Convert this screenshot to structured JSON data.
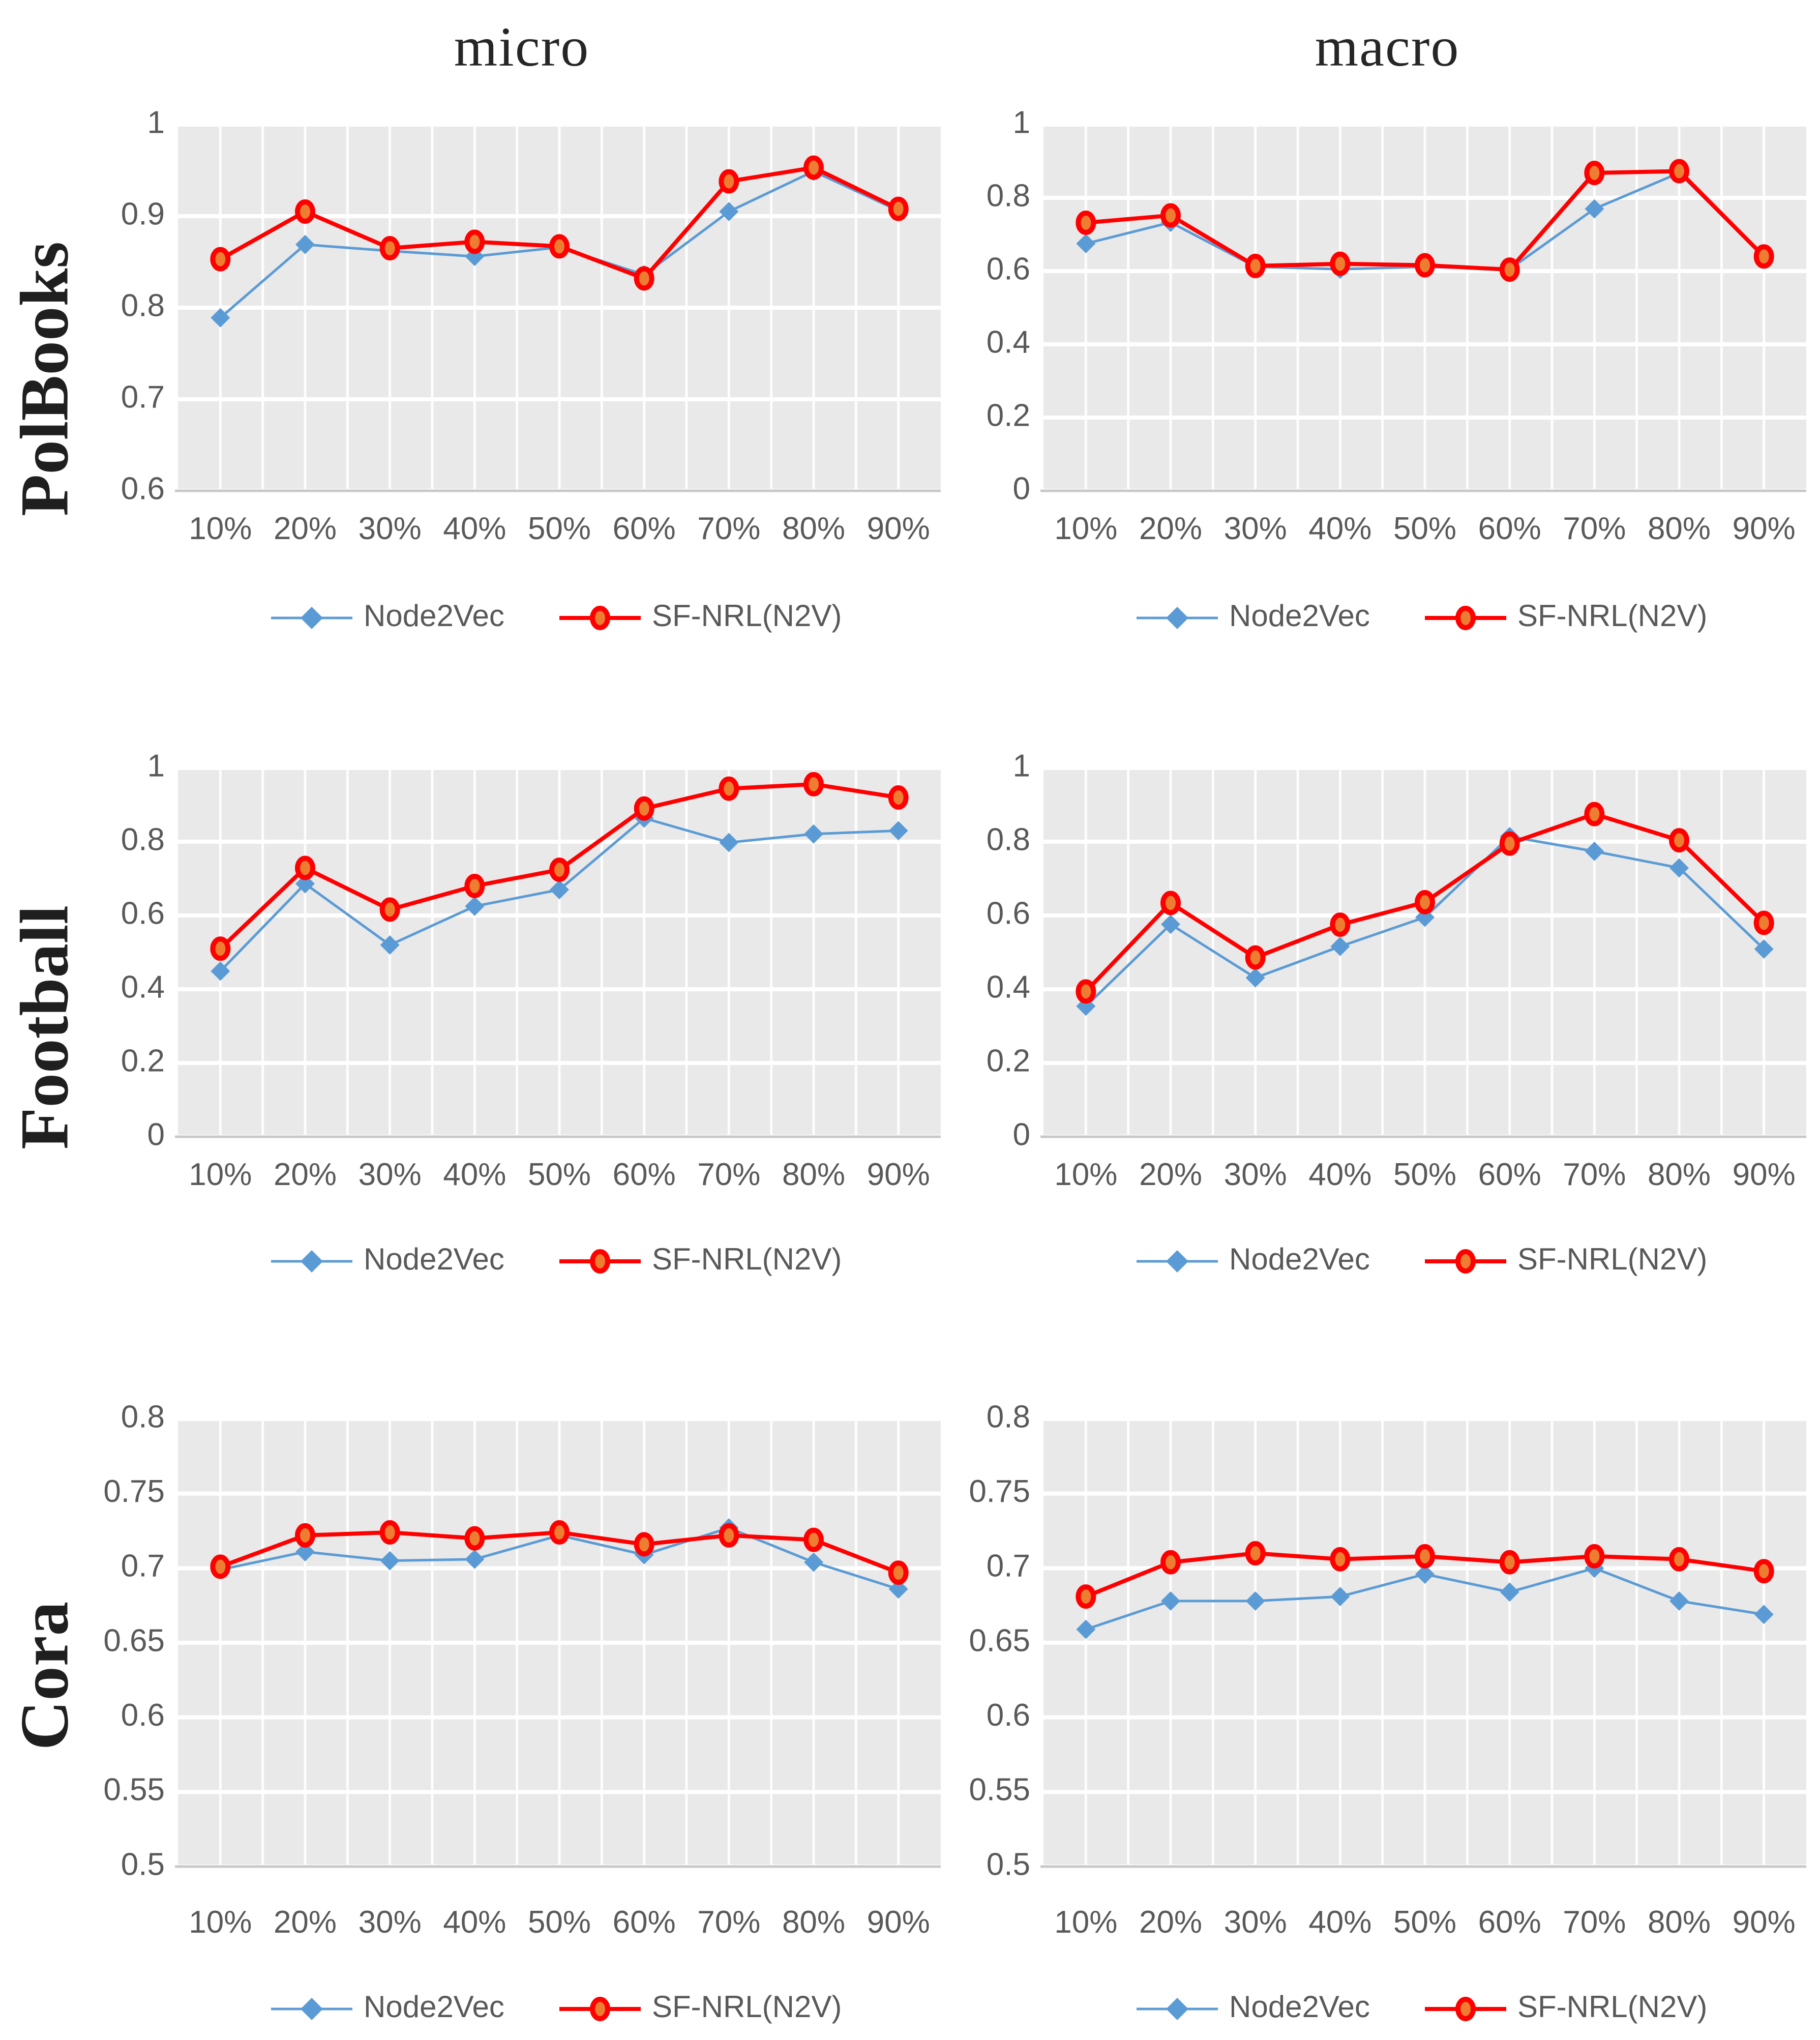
{
  "titles": [
    {
      "label": "micro"
    },
    {
      "label": "macro"
    }
  ],
  "row_labels": [
    {
      "label": "PolBooks"
    },
    {
      "label": "Football"
    },
    {
      "label": "Cora"
    }
  ],
  "colors": {
    "node2vec_blue": "#5B9BD5",
    "sfnrl_red": "#FF0000",
    "marker_orange": "#ED7D31",
    "plot_background": "#E9E9E9",
    "gridline": "#FFFFFF",
    "axis_line": "#C8C8C8",
    "tick_text": "#595959",
    "heading_text": "#262626"
  },
  "series_styles": [
    {
      "name": "Node2Vec",
      "marker": "diamond",
      "line_color": "#5B9BD5",
      "marker_fill": "#5B9BD5",
      "line_width": 5
    },
    {
      "name": "SF-NRL(N2V)",
      "marker": "ellipse",
      "line_color": "#FF0000",
      "marker_fill": "#ED7D31",
      "line_width": 8
    }
  ],
  "chart_data": [
    {
      "type": "line",
      "dataset": "PolBooks",
      "metric": "micro",
      "categories": [
        "10%",
        "20%",
        "30%",
        "40%",
        "50%",
        "60%",
        "70%",
        "80%",
        "90%"
      ],
      "ylim": [
        0.6,
        1.0
      ],
      "y_tick_values": [
        1,
        0.9,
        0.8,
        0.7,
        0.6
      ],
      "y_tick_labels": [
        "1",
        "0.9",
        "0.8",
        "0.7",
        "0.6"
      ],
      "grid": true,
      "legend_position": "bottom",
      "series": [
        {
          "name": "Node2Vec",
          "values": [
            0.789,
            0.869,
            0.862,
            0.856,
            0.866,
            0.836,
            0.905,
            0.949,
            0.906
          ]
        },
        {
          "name": "SF-NRL(N2V)",
          "values": [
            0.853,
            0.905,
            0.865,
            0.872,
            0.867,
            0.832,
            0.938,
            0.953,
            0.908
          ]
        }
      ]
    },
    {
      "type": "line",
      "dataset": "PolBooks",
      "metric": "macro",
      "categories": [
        "10%",
        "20%",
        "30%",
        "40%",
        "50%",
        "60%",
        "70%",
        "80%",
        "90%"
      ],
      "ylim": [
        0,
        1
      ],
      "y_tick_values": [
        1,
        0.8,
        0.6,
        0.4,
        0.2,
        0
      ],
      "y_tick_labels": [
        "1",
        "0.8",
        "0.6",
        "0.4",
        "0.2",
        "0"
      ],
      "grid": true,
      "legend_position": "bottom",
      "series": [
        {
          "name": "Node2Vec",
          "values": [
            0.675,
            0.733,
            0.612,
            0.605,
            0.612,
            0.605,
            0.77,
            0.868,
            0.638
          ]
        },
        {
          "name": "SF-NRL(N2V)",
          "values": [
            0.732,
            0.752,
            0.614,
            0.62,
            0.616,
            0.604,
            0.868,
            0.873,
            0.64
          ]
        }
      ]
    },
    {
      "type": "line",
      "dataset": "Football",
      "metric": "micro",
      "categories": [
        "10%",
        "20%",
        "30%",
        "40%",
        "50%",
        "60%",
        "70%",
        "80%",
        "90%"
      ],
      "ylim": [
        0,
        1
      ],
      "y_tick_values": [
        1,
        0.8,
        0.6,
        0.4,
        0.2,
        0
      ],
      "y_tick_labels": [
        "1",
        "0.8",
        "0.6",
        "0.4",
        "0.2",
        "0"
      ],
      "grid": true,
      "legend_position": "bottom",
      "series": [
        {
          "name": "Node2Vec",
          "values": [
            0.449,
            0.686,
            0.52,
            0.625,
            0.67,
            0.864,
            0.798,
            0.821,
            0.83
          ]
        },
        {
          "name": "SF-NRL(N2V)",
          "values": [
            0.51,
            0.729,
            0.616,
            0.68,
            0.724,
            0.89,
            0.944,
            0.956,
            0.92
          ]
        }
      ]
    },
    {
      "type": "line",
      "dataset": "Football",
      "metric": "macro",
      "categories": [
        "10%",
        "20%",
        "30%",
        "40%",
        "50%",
        "60%",
        "70%",
        "80%",
        "90%"
      ],
      "ylim": [
        0,
        1
      ],
      "y_tick_values": [
        1,
        0.8,
        0.6,
        0.4,
        0.2,
        0
      ],
      "y_tick_labels": [
        "1",
        "0.8",
        "0.6",
        "0.4",
        "0.2",
        "0"
      ],
      "grid": true,
      "legend_position": "bottom",
      "series": [
        {
          "name": "Node2Vec",
          "values": [
            0.354,
            0.576,
            0.431,
            0.516,
            0.595,
            0.814,
            0.774,
            0.729,
            0.509
          ]
        },
        {
          "name": "SF-NRL(N2V)",
          "values": [
            0.394,
            0.634,
            0.486,
            0.575,
            0.636,
            0.795,
            0.875,
            0.804,
            0.58
          ]
        }
      ]
    },
    {
      "type": "line",
      "dataset": "Cora",
      "metric": "micro",
      "categories": [
        "10%",
        "20%",
        "30%",
        "40%",
        "50%",
        "60%",
        "70%",
        "80%",
        "90%"
      ],
      "ylim": [
        0.5,
        0.8
      ],
      "y_tick_values": [
        0.8,
        0.75,
        0.7,
        0.65,
        0.6,
        0.55,
        0.5
      ],
      "y_tick_labels": [
        "0.8",
        "0.75",
        "0.7",
        "0.65",
        "0.6",
        "0.55",
        "0.5"
      ],
      "grid": true,
      "legend_position": "bottom",
      "series": [
        {
          "name": "Node2Vec",
          "values": [
            0.699,
            0.711,
            0.705,
            0.706,
            0.722,
            0.709,
            0.727,
            0.704,
            0.686
          ]
        },
        {
          "name": "SF-NRL(N2V)",
          "values": [
            0.701,
            0.722,
            0.724,
            0.72,
            0.724,
            0.716,
            0.722,
            0.719,
            0.697
          ]
        }
      ]
    },
    {
      "type": "line",
      "dataset": "Cora",
      "metric": "macro",
      "categories": [
        "10%",
        "20%",
        "30%",
        "40%",
        "50%",
        "60%",
        "70%",
        "80%",
        "90%"
      ],
      "ylim": [
        0.5,
        0.8
      ],
      "y_tick_values": [
        0.8,
        0.75,
        0.7,
        0.65,
        0.6,
        0.55,
        0.5
      ],
      "y_tick_labels": [
        "0.8",
        "0.75",
        "0.7",
        "0.65",
        "0.6",
        "0.55",
        "0.5"
      ],
      "grid": true,
      "legend_position": "bottom",
      "series": [
        {
          "name": "Node2Vec",
          "values": [
            0.659,
            0.678,
            0.678,
            0.681,
            0.696,
            0.684,
            0.7,
            0.678,
            0.669
          ]
        },
        {
          "name": "SF-NRL(N2V)",
          "values": [
            0.681,
            0.704,
            0.71,
            0.706,
            0.708,
            0.704,
            0.708,
            0.706,
            0.698
          ]
        }
      ]
    }
  ]
}
